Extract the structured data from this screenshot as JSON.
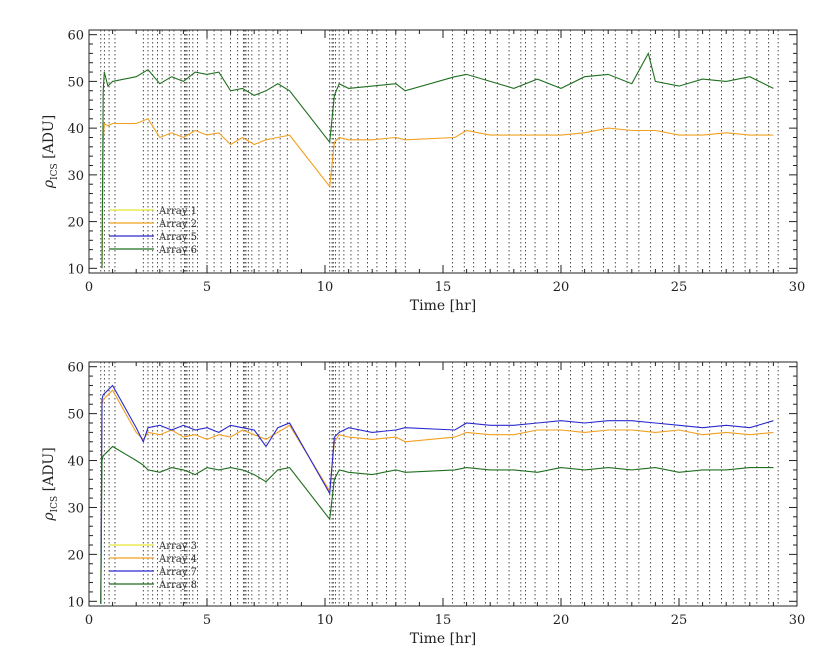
{
  "chart_data": [
    {
      "type": "line",
      "xlabel": "Time [hr]",
      "ylabel_main": "ρ",
      "ylabel_sub": "ICS",
      "ylabel_unit": "[ADU]",
      "xlim": [
        0,
        30
      ],
      "ylim": [
        9,
        61
      ],
      "xticks": [
        0,
        5,
        10,
        15,
        20,
        25,
        30
      ],
      "yticks": [
        10,
        20,
        30,
        40,
        50,
        60
      ],
      "legend_position": "lower-left",
      "series": [
        {
          "name": "Array 1",
          "color": "#e8e830",
          "x": [],
          "y": []
        },
        {
          "name": "Array 2",
          "color": "#f2a020",
          "x": [
            0.55,
            0.6,
            0.65,
            0.8,
            1.0,
            2.0,
            2.5,
            3.0,
            3.5,
            4.0,
            4.5,
            5.0,
            5.5,
            6.0,
            6.5,
            7.0,
            7.5,
            8.0,
            8.5,
            10.2,
            10.4,
            10.6,
            11.0,
            12.0,
            13.0,
            13.4,
            15.5,
            16.0,
            17.0,
            18.0,
            19.0,
            20.0,
            21.0,
            22.0,
            23.0,
            24.0,
            25.0,
            26.0,
            27.0,
            28.0,
            29.0
          ],
          "y": [
            10,
            37,
            41,
            40.5,
            41,
            41,
            42,
            38,
            39,
            38,
            39.5,
            38.5,
            39,
            36.5,
            38,
            36.5,
            37.5,
            38,
            38.5,
            27.5,
            37,
            38,
            37.5,
            37.5,
            38,
            37.5,
            38,
            39.5,
            38.5,
            38.5,
            38.5,
            38.5,
            39,
            40,
            39.5,
            39.5,
            38.5,
            38.5,
            39,
            38.5,
            38.5
          ]
        },
        {
          "name": "Array 5",
          "color": "#2a2ad0",
          "x": [],
          "y": []
        },
        {
          "name": "Array 6",
          "color": "#1f6f1f",
          "x": [
            0.55,
            0.6,
            0.65,
            0.8,
            1.0,
            2.0,
            2.5,
            3.0,
            3.5,
            4.0,
            4.5,
            5.0,
            5.5,
            6.0,
            6.5,
            7.0,
            7.5,
            8.0,
            8.5,
            10.2,
            10.4,
            10.6,
            11.0,
            12.0,
            13.0,
            13.4,
            15.5,
            16.0,
            17.0,
            18.0,
            19.0,
            20.0,
            21.0,
            22.0,
            23.0,
            23.7,
            24.0,
            25.0,
            26.0,
            27.0,
            28.0,
            29.0
          ],
          "y": [
            10,
            48,
            52,
            49,
            50,
            51,
            52.5,
            49.5,
            51,
            50,
            52,
            51.5,
            52,
            48,
            48.5,
            47,
            48,
            49.5,
            48,
            37,
            47,
            49.5,
            48.5,
            49,
            49.5,
            48,
            51,
            51.5,
            50,
            48.5,
            50.5,
            48.5,
            51,
            51.5,
            49.5,
            56,
            50,
            49,
            50.5,
            50,
            51,
            48.5
          ]
        }
      ]
    },
    {
      "type": "line",
      "xlabel": "Time [hr]",
      "ylabel_main": "ρ",
      "ylabel_sub": "ICS",
      "ylabel_unit": "[ADU]",
      "xlim": [
        0,
        30
      ],
      "ylim": [
        9,
        61
      ],
      "xticks": [
        0,
        5,
        10,
        15,
        20,
        25,
        30
      ],
      "yticks": [
        10,
        20,
        30,
        40,
        50,
        60
      ],
      "legend_position": "lower-left",
      "series": [
        {
          "name": "Array 3",
          "color": "#e8e830",
          "x": [],
          "y": []
        },
        {
          "name": "Array 4",
          "color": "#f2a020",
          "x": [
            0.5,
            0.55,
            0.6,
            1.0,
            2.0,
            2.3,
            2.5,
            3.0,
            3.5,
            4.0,
            4.5,
            5.0,
            5.5,
            6.0,
            6.5,
            7.0,
            7.5,
            8.0,
            8.5,
            10.2,
            10.4,
            10.6,
            11.0,
            12.0,
            13.0,
            13.4,
            15.5,
            16.0,
            17.0,
            18.0,
            19.0,
            20.0,
            21.0,
            22.0,
            23.0,
            24.0,
            25.0,
            26.0,
            27.0,
            28.0,
            29.0
          ],
          "y": [
            9.5,
            52,
            53,
            55,
            46,
            44.5,
            46,
            45.5,
            46.5,
            45,
            45.5,
            44.5,
            45.5,
            45,
            46.5,
            45.5,
            44.5,
            46,
            47.5,
            33.5,
            44,
            45.5,
            45,
            44.5,
            45,
            44,
            45,
            46,
            45.5,
            45.5,
            46.5,
            46.5,
            46,
            46.5,
            46.5,
            46,
            46.5,
            45.5,
            46,
            45.5,
            46
          ]
        },
        {
          "name": "Array 7",
          "color": "#2a2ad0",
          "x": [
            0.5,
            0.55,
            0.6,
            1.0,
            2.0,
            2.3,
            2.5,
            3.0,
            3.5,
            4.0,
            4.5,
            5.0,
            5.5,
            6.0,
            6.5,
            7.0,
            7.5,
            8.0,
            8.5,
            10.2,
            10.4,
            10.6,
            11.0,
            12.0,
            13.0,
            13.4,
            15.5,
            16.0,
            17.0,
            18.0,
            19.0,
            20.0,
            21.0,
            22.0,
            23.0,
            24.0,
            25.0,
            26.0,
            27.0,
            28.0,
            29.0
          ],
          "y": [
            9.5,
            53,
            54,
            56,
            47,
            44,
            47,
            47.5,
            46.5,
            47.5,
            46.5,
            47,
            46,
            47.5,
            47,
            46.5,
            43,
            47,
            48,
            33,
            45,
            46,
            47,
            46,
            46.5,
            47,
            46.5,
            48,
            47.5,
            47.5,
            48,
            48.5,
            48,
            48.5,
            48.5,
            48,
            47.5,
            47,
            47.5,
            47,
            48.5
          ]
        },
        {
          "name": "Array 8",
          "color": "#1f6f1f",
          "x": [
            0.5,
            0.55,
            0.6,
            1.0,
            2.0,
            2.3,
            2.5,
            3.0,
            3.5,
            4.0,
            4.5,
            5.0,
            5.5,
            6.0,
            6.5,
            7.0,
            7.5,
            8.0,
            8.5,
            10.2,
            10.4,
            10.6,
            11.0,
            12.0,
            13.0,
            13.4,
            15.5,
            16.0,
            17.0,
            18.0,
            19.0,
            20.0,
            21.0,
            22.0,
            23.0,
            24.0,
            25.0,
            26.0,
            27.0,
            28.0,
            29.0
          ],
          "y": [
            9.5,
            40,
            41,
            43,
            40,
            39,
            38,
            37.5,
            38.5,
            38,
            37,
            38.5,
            38,
            38.5,
            38,
            37,
            35.5,
            38,
            38.5,
            27.5,
            36,
            38,
            37.5,
            37,
            38,
            37.5,
            38,
            38.5,
            38,
            38,
            37.5,
            38.5,
            38,
            38.5,
            38,
            38.5,
            37.5,
            38,
            38,
            38.5,
            38.5
          ]
        }
      ]
    }
  ]
}
